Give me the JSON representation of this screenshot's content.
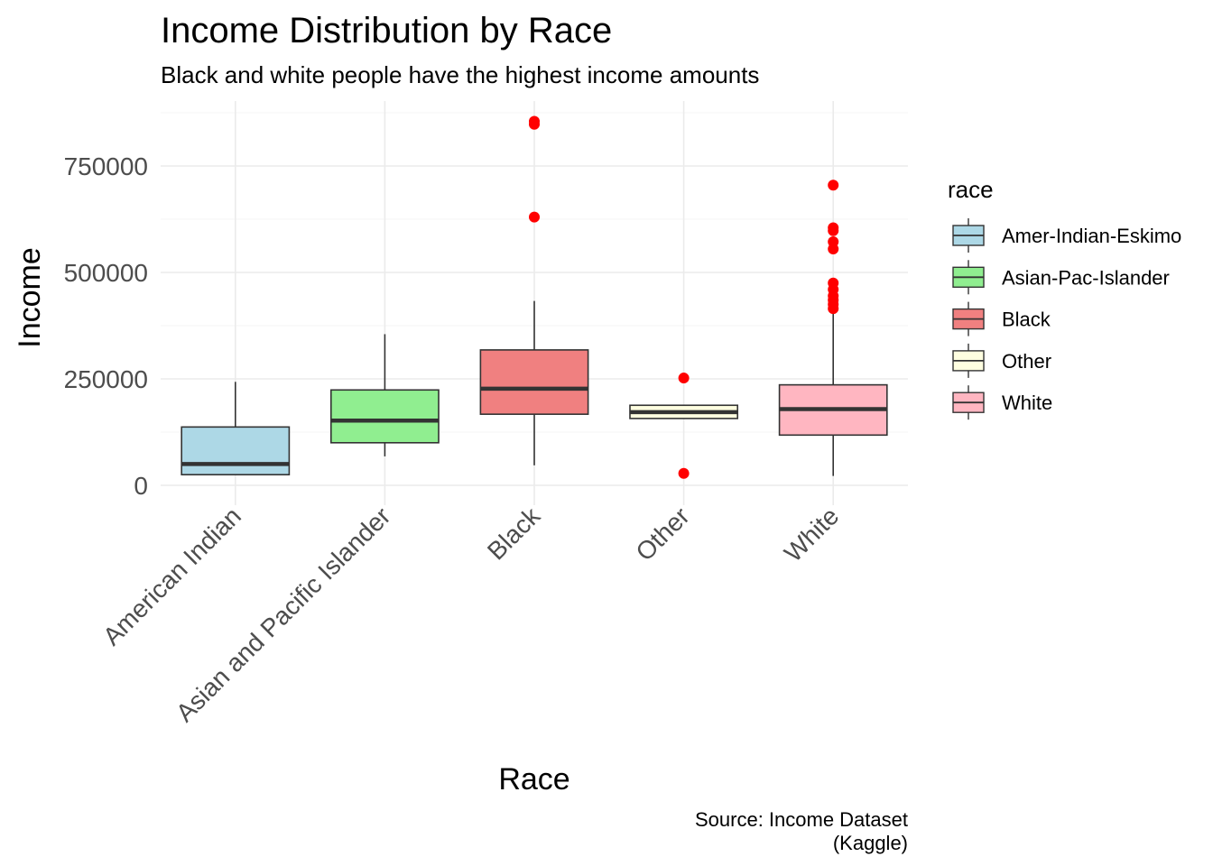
{
  "chart_data": {
    "type": "boxplot",
    "title": "Income Distribution by Race",
    "subtitle": "Black and white people have the highest income amounts",
    "xlabel": "Race",
    "ylabel": "Income",
    "caption_lines": [
      "Source: Income Dataset",
      "(Kaggle)"
    ],
    "ylim": [
      -25000,
      900000
    ],
    "y_ticks": [
      0,
      250000,
      500000,
      750000
    ],
    "y_tick_labels": [
      "0",
      "250000",
      "500000",
      "750000"
    ],
    "grid": true,
    "legend_title": "race",
    "legend_position": "right",
    "categories": [
      "American Indian",
      "Asian and Pacific Islander",
      "Black",
      "Other",
      "White"
    ],
    "series": [
      {
        "name": "Amer-Indian-Eskimo",
        "color": "#add8e6",
        "min": 25000,
        "q1": 25000,
        "median": 50000,
        "q3": 137000,
        "max": 243000,
        "outliers": []
      },
      {
        "name": "Asian-Pac-Islander",
        "color": "#90ee90",
        "min": 68000,
        "q1": 100000,
        "median": 152000,
        "q3": 224000,
        "max": 355000,
        "outliers": []
      },
      {
        "name": "Black",
        "color": "#f08080",
        "min": 47000,
        "q1": 167000,
        "median": 227000,
        "q3": 318000,
        "max": 433000,
        "outliers": [
          630000,
          848000,
          855000
        ]
      },
      {
        "name": "Other",
        "color": "#ffffe0",
        "min": 157000,
        "q1": 157000,
        "median": 172000,
        "q3": 188000,
        "max": 188000,
        "outliers": [
          252000,
          28000
        ]
      },
      {
        "name": "White",
        "color": "#ffb6c1",
        "min": 22000,
        "q1": 118000,
        "median": 179000,
        "q3": 236000,
        "max": 408000,
        "outliers": [
          415000,
          425000,
          435000,
          445000,
          460000,
          475000,
          555000,
          572000,
          598000,
          605000,
          705000
        ]
      }
    ],
    "outlier_color": "#ff0000"
  }
}
